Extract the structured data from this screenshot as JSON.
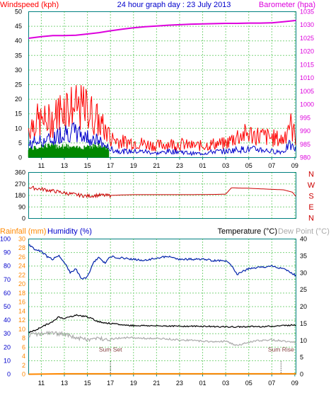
{
  "colors": {
    "wind_gust": "#ff0000",
    "wind_speed": "#0000cc",
    "wind_avg": "#008800",
    "barometer": "#dd00dd",
    "direction": "#cc0000",
    "humidity": "#0022aa",
    "temperature": "#000000",
    "dew_point": "#aaaaaa",
    "rainfall": "#ff8800",
    "axis_teal": "#008080",
    "grid": "#00aa00"
  },
  "chart_data": [
    {
      "type": "line",
      "panel": "wind-barometer",
      "title": "24 hour graph day : 23 July 2013",
      "left_label": "Windspeed (kph)",
      "right_label": "Barometer (hpa)",
      "x_ticks": [
        "11",
        "13",
        "15",
        "17",
        "19",
        "21",
        "23",
        "01",
        "03",
        "05",
        "07",
        "09"
      ],
      "x_range": [
        9.9,
        33.1
      ],
      "ylim_left": [
        0,
        50
      ],
      "y_ticks_left": [
        "0",
        "5",
        "10",
        "15",
        "20",
        "25",
        "30",
        "35",
        "40",
        "45",
        "50"
      ],
      "ylim_right": [
        980,
        1035
      ],
      "y_ticks_right": [
        "980",
        "985",
        "990",
        "995",
        "1000",
        "1005",
        "1010",
        "1015",
        "1020",
        "1025",
        "1030",
        "1035"
      ],
      "series": [
        {
          "name": "barometer",
          "axis": "right",
          "x": [
            9.9,
            11,
            12,
            13,
            14,
            15,
            16,
            17,
            18,
            19,
            20,
            21,
            22,
            23,
            24,
            25,
            26,
            27,
            28,
            29,
            30,
            31,
            32,
            33.1
          ],
          "values": [
            1025,
            1025.6,
            1026,
            1026,
            1026.1,
            1026.6,
            1027.1,
            1027.8,
            1028.4,
            1028.9,
            1029.3,
            1029.6,
            1029.9,
            1030.1,
            1030.3,
            1030.4,
            1030.5,
            1030.6,
            1030.6,
            1030.7,
            1030.7,
            1030.8,
            1031.2,
            1031.7
          ]
        },
        {
          "name": "gust-envelope",
          "axis": "left",
          "x": [
            9.9,
            10.5,
            11,
            12,
            13,
            14,
            15,
            16,
            17,
            18,
            19,
            20,
            21,
            22,
            23,
            24,
            25,
            26,
            27,
            28,
            29,
            30,
            31,
            32,
            32.5,
            33.1
          ],
          "values": [
            15,
            19,
            18,
            19,
            27,
            25,
            25,
            18,
            10,
            8,
            8,
            7,
            6,
            7,
            7,
            6,
            6,
            7,
            7,
            11,
            12,
            11,
            10,
            9,
            18,
            10
          ]
        },
        {
          "name": "speed-envelope",
          "axis": "left",
          "x": [
            9.9,
            10.5,
            11,
            12,
            13,
            14,
            15,
            16,
            17,
            18,
            19,
            20,
            21,
            22,
            23,
            24,
            25,
            26,
            27,
            28,
            29,
            30,
            31,
            32,
            32.5,
            33.1
          ],
          "values": [
            6,
            8,
            8,
            9,
            13,
            12,
            10,
            8,
            4,
            3,
            3,
            3,
            2,
            3,
            3,
            2,
            2,
            3,
            3,
            4,
            4,
            4,
            3,
            3,
            6,
            4
          ]
        },
        {
          "name": "average-envelope",
          "axis": "left",
          "x": [
            9.9,
            10.5,
            11,
            12,
            13,
            14,
            15,
            16,
            16.9
          ],
          "values": [
            4,
            4,
            5,
            5,
            5,
            4,
            5,
            5,
            4
          ]
        }
      ]
    },
    {
      "type": "line",
      "panel": "direction",
      "x_ticks": [
        "11",
        "13",
        "15",
        "17",
        "19",
        "21",
        "23",
        "01",
        "03",
        "05",
        "07",
        "09"
      ],
      "x_range": [
        9.9,
        33.1
      ],
      "ylim": [
        0,
        360
      ],
      "y_ticks": [
        "0",
        "90",
        "180",
        "270",
        "360"
      ],
      "compass": [
        "N",
        "W",
        "S",
        "E",
        "N"
      ],
      "series": [
        {
          "name": "direction",
          "x": [
            9.9,
            10.5,
            11,
            12,
            13,
            14,
            15,
            16,
            16.9,
            17,
            18,
            19,
            20,
            21,
            22,
            23,
            24,
            25,
            26,
            27,
            27.5,
            28,
            29,
            30,
            31,
            32,
            32.8,
            33.1
          ],
          "values": [
            245,
            235,
            230,
            215,
            200,
            185,
            175,
            182,
            178,
            180,
            184,
            186,
            186,
            186,
            186,
            186,
            186,
            187,
            188,
            190,
            240,
            238,
            236,
            232,
            228,
            224,
            205,
            170
          ]
        }
      ]
    },
    {
      "type": "line",
      "panel": "humidity-temperature",
      "left_label_rain": "Rainfall (mm)",
      "left_label_humidity": "Humidity (%)",
      "right_label_temp": "Temperature (°C)",
      "right_label_dew": "Dew Point (°C)",
      "x_ticks": [
        "11",
        "13",
        "15",
        "17",
        "19",
        "21",
        "23",
        "01",
        "03",
        "05",
        "07",
        "09"
      ],
      "x_range": [
        9.9,
        33.1
      ],
      "ylim_humidity": [
        0,
        100
      ],
      "y_ticks_humidity": [
        "0",
        "10",
        "20",
        "30",
        "40",
        "50",
        "60",
        "70",
        "80",
        "90",
        "100"
      ],
      "ylim_rain": [
        0,
        30
      ],
      "y_ticks_rain": [
        "0",
        "2",
        "4",
        "6",
        "8",
        "10",
        "12",
        "14",
        "16",
        "18",
        "20",
        "22",
        "24",
        "26",
        "28",
        "30"
      ],
      "ylim_temp": [
        0,
        40
      ],
      "y_ticks_temp": [
        "0",
        "5",
        "10",
        "15",
        "20",
        "25",
        "30",
        "35",
        "40"
      ],
      "annotations": [
        {
          "text": "Sum Set",
          "x": 17.0
        },
        {
          "text": "Sum Rise",
          "x": 31.8
        }
      ],
      "series": [
        {
          "name": "humidity",
          "axis": "humidity",
          "x": [
            9.9,
            10.5,
            11,
            11.5,
            12,
            12.5,
            13,
            13.5,
            14,
            14.5,
            15,
            15.5,
            16,
            16.5,
            17,
            18,
            19,
            20,
            21,
            22,
            23,
            24,
            25,
            26,
            27,
            27.5,
            28,
            28.5,
            29,
            30,
            31,
            32,
            33.1
          ],
          "values": [
            96,
            92,
            91,
            87,
            85,
            88,
            83,
            75,
            78,
            70,
            72,
            82,
            87,
            82,
            87,
            86,
            85,
            84,
            86,
            87,
            85,
            85,
            85,
            84,
            84,
            80,
            74,
            76,
            78,
            79,
            80,
            78,
            73
          ]
        },
        {
          "name": "temperature",
          "axis": "temp",
          "x": [
            9.9,
            10.5,
            11,
            12,
            12.5,
            13,
            14,
            15,
            16,
            17,
            18,
            19,
            20,
            21,
            22,
            23,
            24,
            25,
            26,
            27,
            28,
            29,
            30,
            31,
            32,
            33.1
          ],
          "values": [
            12.4,
            13,
            14,
            15.5,
            17,
            16.5,
            17.5,
            17,
            15.5,
            15,
            14.6,
            14.4,
            14.4,
            14.3,
            14.3,
            14.2,
            14.2,
            14.2,
            14.1,
            14.0,
            14.0,
            14.1,
            14.1,
            14.2,
            14.4,
            14.6
          ]
        },
        {
          "name": "dew-point",
          "axis": "temp",
          "x": [
            9.9,
            10.5,
            11,
            12,
            13,
            14,
            15,
            16,
            17,
            18,
            19,
            20,
            21,
            22,
            23,
            24,
            25,
            26,
            27,
            28,
            29,
            30,
            31,
            32,
            33.1
          ],
          "values": [
            11.6,
            11.8,
            12,
            12.2,
            11.8,
            10.8,
            10.2,
            10.6,
            10.4,
            10.8,
            10.8,
            10.6,
            10.6,
            10.4,
            10.2,
            10.0,
            9.8,
            9.6,
            9.8,
            8.4,
            9.6,
            10.0,
            10.2,
            9.8,
            9.6
          ]
        },
        {
          "name": "rainfall",
          "axis": "rain",
          "x": [
            9.9,
            13,
            33.1
          ],
          "values": [
            0,
            0.1,
            0.1
          ]
        }
      ]
    }
  ]
}
